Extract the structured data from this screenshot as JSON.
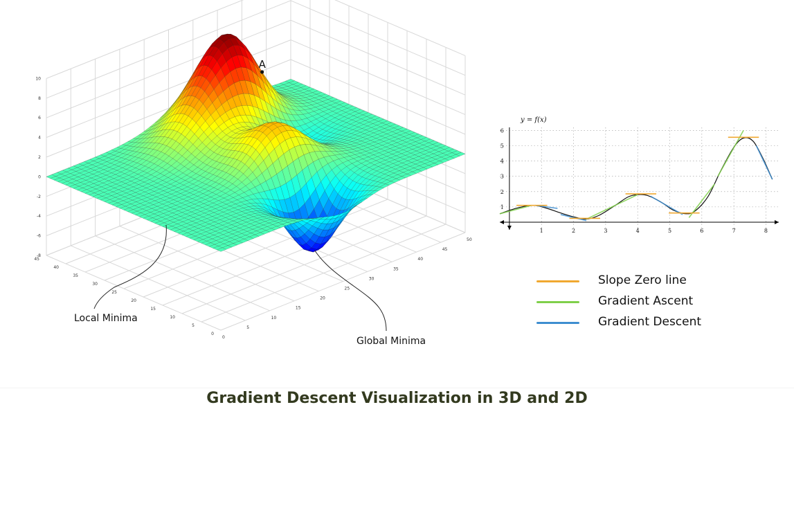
{
  "page": {
    "title": "Gradient Descent Visualization in 3D and 2D"
  },
  "colors": {
    "slope_zero": "#f0a830",
    "gradient_ascent": "#7fcf4a",
    "gradient_descent": "#3e8ed0",
    "curve": "#111111"
  },
  "chart_data": [
    {
      "type": "surface",
      "title": "",
      "point_label": "A",
      "annotations": [
        "Local Minima",
        "Global Minima"
      ],
      "zlim": [
        -8,
        10
      ],
      "z_ticks": [
        "10",
        "8",
        "6",
        "4",
        "2",
        "0",
        "-2",
        "-4",
        "-6",
        "-8"
      ],
      "x_ticks": [
        "0",
        "5",
        "10",
        "15",
        "20",
        "25",
        "30",
        "35",
        "40",
        "45",
        "50"
      ],
      "y_ticks": [
        "0",
        "5",
        "10",
        "15",
        "20",
        "25",
        "30",
        "35",
        "40",
        "45"
      ],
      "grid": true,
      "colormap": "jet",
      "peaks": [
        {
          "x": 32,
          "y": 38,
          "z": 9
        },
        {
          "x": 27,
          "y": 20,
          "z": 4.5
        },
        {
          "x": 23,
          "y": 35,
          "z": 3
        }
      ],
      "minima": [
        {
          "name": "Local Minima",
          "x": 35,
          "y": 28,
          "z": -2
        },
        {
          "name": "Global Minima",
          "x": 25,
          "y": 8,
          "z": -6.5
        }
      ]
    },
    {
      "type": "line",
      "title": "y = f(x)",
      "xlabel": "",
      "ylabel": "",
      "xlim": [
        -0.3,
        8.4
      ],
      "ylim": [
        -0.5,
        6.2
      ],
      "x_ticks": [
        1,
        2,
        3,
        4,
        5,
        6,
        7,
        8
      ],
      "y_ticks": [
        1,
        2,
        3,
        4,
        5,
        6
      ],
      "grid": true,
      "curve_points": [
        [
          -0.3,
          0.55
        ],
        [
          0.2,
          0.9
        ],
        [
          0.7,
          1.1
        ],
        [
          1.1,
          0.95
        ],
        [
          1.6,
          0.6
        ],
        [
          2.0,
          0.35
        ],
        [
          2.4,
          0.2
        ],
        [
          2.8,
          0.45
        ],
        [
          3.3,
          1.1
        ],
        [
          3.7,
          1.65
        ],
        [
          4.0,
          1.8
        ],
        [
          4.3,
          1.75
        ],
        [
          4.7,
          1.35
        ],
        [
          5.1,
          0.8
        ],
        [
          5.5,
          0.55
        ],
        [
          5.8,
          0.75
        ],
        [
          6.2,
          1.7
        ],
        [
          6.6,
          3.4
        ],
        [
          7.0,
          4.9
        ],
        [
          7.3,
          5.5
        ],
        [
          7.6,
          5.3
        ],
        [
          7.9,
          4.2
        ],
        [
          8.2,
          2.8
        ]
      ],
      "slope_zero_lines": [
        {
          "x": 0.7,
          "y": 1.1
        },
        {
          "x": 2.35,
          "y": 0.25
        },
        {
          "x": 4.1,
          "y": 1.85
        },
        {
          "x": 5.45,
          "y": 0.6
        },
        {
          "x": 7.3,
          "y": 5.55
        }
      ],
      "ascent_segments": [
        [
          [
            -0.3,
            0.55
          ],
          [
            0.7,
            1.1
          ]
        ],
        [
          [
            2.4,
            0.2
          ],
          [
            4.0,
            1.8
          ]
        ],
        [
          [
            5.6,
            0.3
          ],
          [
            6.4,
            2.5
          ]
        ],
        [
          [
            6.5,
            3.0
          ],
          [
            7.3,
            6.0
          ]
        ]
      ],
      "descent_segments": [
        [
          [
            0.8,
            1.1
          ],
          [
            1.5,
            0.9
          ]
        ],
        [
          [
            1.6,
            0.5
          ],
          [
            2.4,
            0.1
          ]
        ],
        [
          [
            4.4,
            1.7
          ],
          [
            5.4,
            0.5
          ]
        ],
        [
          [
            7.7,
            5.0
          ],
          [
            8.2,
            2.8
          ]
        ]
      ],
      "legend": [
        {
          "label": "Slope Zero line",
          "color": "#f0a830"
        },
        {
          "label": "Gradient Ascent",
          "color": "#7fcf4a"
        },
        {
          "label": "Gradient Descent",
          "color": "#3e8ed0"
        }
      ]
    }
  ]
}
